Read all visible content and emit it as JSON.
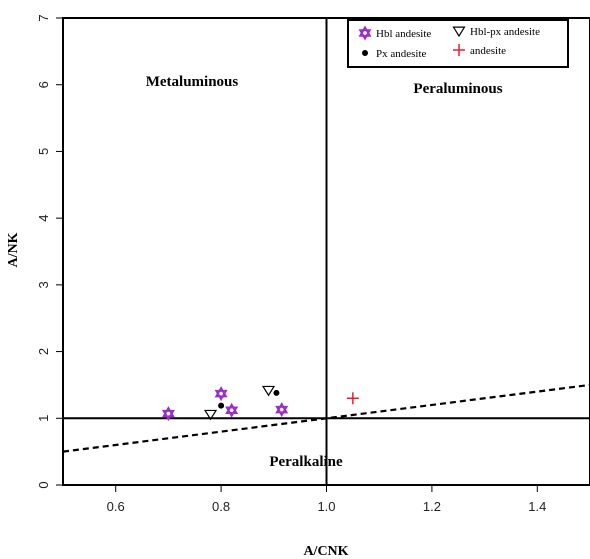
{
  "chart_data": {
    "type": "scatter",
    "xlabel": "A/CNK",
    "ylabel": "A/NK",
    "xlim": [
      0.5,
      1.5
    ],
    "ylim": [
      0,
      7
    ],
    "x_ticks": [
      "0.6",
      "0.8",
      "1.0",
      "1.2",
      "1.4"
    ],
    "y_ticks": [
      "0",
      "1",
      "2",
      "3",
      "4",
      "5",
      "6",
      "7"
    ],
    "region_labels": [
      "Metaluminous",
      "Peraluminous",
      "Peralkaline"
    ],
    "reference_lines": {
      "vertical_x": 1.0,
      "horizontal_y": 1.0,
      "dashed_line": [
        [
          0.5,
          0.5
        ],
        [
          1.5,
          1.5
        ]
      ]
    },
    "legend": {
      "position": "top-right",
      "entries": [
        {
          "label": "Hbl andesite",
          "marker": "star",
          "color": "#9b30c8"
        },
        {
          "label": "Hbl-px andesite",
          "marker": "triangle-down",
          "color": "#000000"
        },
        {
          "label": "Px andesite",
          "marker": "dot",
          "color": "#000000"
        },
        {
          "label": "andesite",
          "marker": "plus",
          "color": "#e8202a"
        }
      ]
    },
    "series": [
      {
        "name": "Hbl andesite",
        "marker": "star",
        "color": "#9b30c8",
        "points": [
          [
            0.7,
            1.07
          ],
          [
            0.8,
            1.37
          ],
          [
            0.82,
            1.12
          ],
          [
            0.915,
            1.13
          ]
        ]
      },
      {
        "name": "Hbl-px andesite",
        "marker": "triangle-down",
        "color": "#000000",
        "points": [
          [
            0.78,
            1.06
          ],
          [
            0.89,
            1.42
          ]
        ]
      },
      {
        "name": "Px andesite",
        "marker": "dot",
        "color": "#000000",
        "points": [
          [
            0.8,
            1.19
          ],
          [
            0.905,
            1.38
          ]
        ]
      },
      {
        "name": "andesite",
        "marker": "plus",
        "color": "#e8202a",
        "points": [
          [
            1.05,
            1.3
          ]
        ]
      }
    ]
  }
}
